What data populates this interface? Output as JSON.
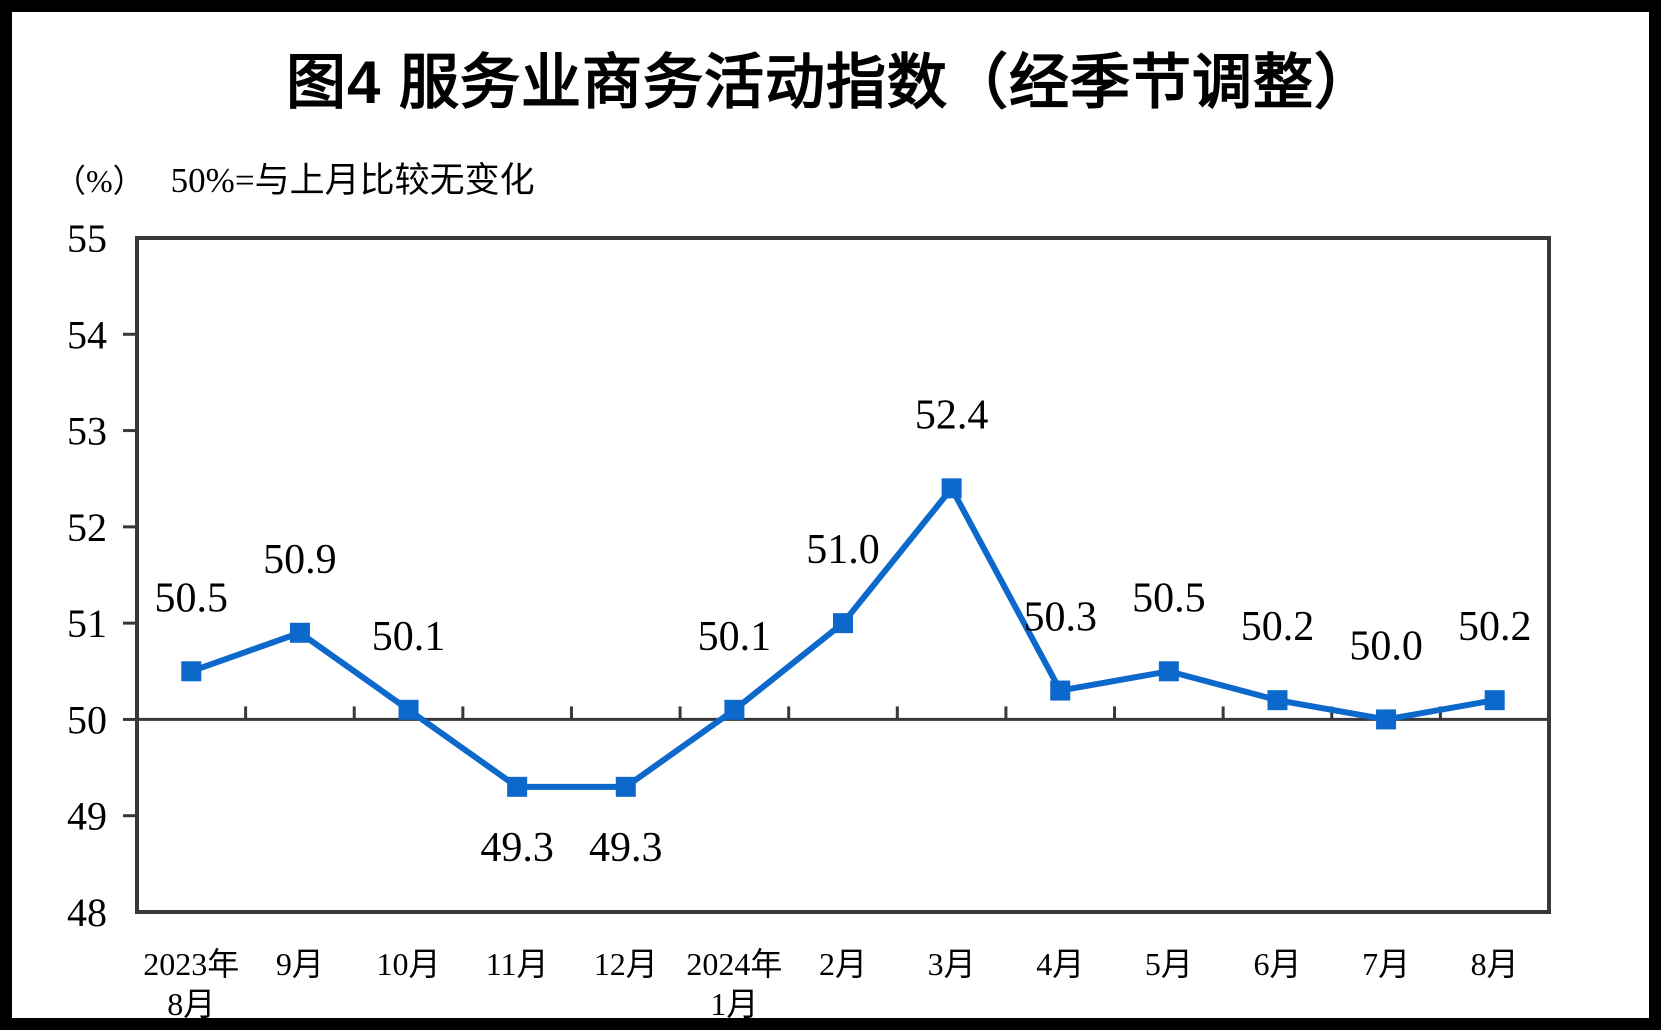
{
  "chart_data": {
    "type": "line",
    "title": "图4 服务业商务活动指数（经季节调整）",
    "unit_label": "（%）",
    "subtitle": "50%=与上月比较无变化",
    "categories": [
      "2023年\n8月",
      "9月",
      "10月",
      "11月",
      "12月",
      "2024年\n1月",
      "2月",
      "3月",
      "4月",
      "5月",
      "6月",
      "7月",
      "8月"
    ],
    "series": [
      {
        "name": "服务业商务活动指数",
        "values": [
          50.5,
          50.9,
          50.1,
          49.3,
          49.3,
          50.1,
          51.0,
          52.4,
          50.3,
          50.5,
          50.2,
          50.0,
          50.2
        ]
      }
    ],
    "ylim": [
      48,
      55
    ],
    "yticks": [
      48,
      49,
      50,
      51,
      52,
      53,
      54,
      55
    ],
    "reference_line": 50,
    "grid": false,
    "legend": "none",
    "label_decimals": 1,
    "line_color": "#0c68cb",
    "axis_color": "#383838",
    "text_color": "#000000"
  }
}
